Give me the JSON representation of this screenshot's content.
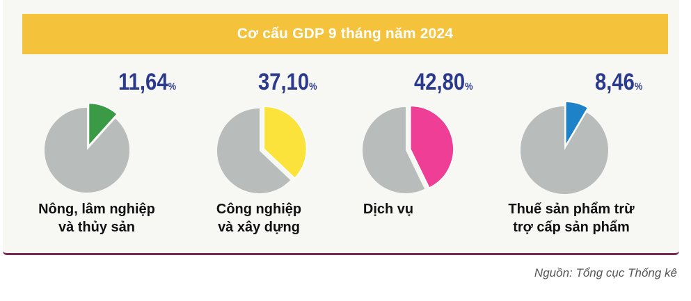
{
  "chart_data": {
    "type": "pie",
    "title": "Cơ cấu GDP 9 tháng năm 2024",
    "unit": "%",
    "categories": [
      {
        "label_line1": "Nông, lâm nghiệp",
        "label_line2": "và thủy sản",
        "value": 11.64,
        "value_text": "11,64",
        "color": "#3a9a45"
      },
      {
        "label_line1": "Công nghiệp",
        "label_line2": "và xây dựng",
        "value": 37.1,
        "value_text": "37,10",
        "color": "#fbe33c"
      },
      {
        "label_line1": "Dịch vụ",
        "label_line2": "",
        "value": 42.8,
        "value_text": "42,80",
        "color": "#ee3e95"
      },
      {
        "label_line1": "Thuế sản phẩm trừ",
        "label_line2": "trợ cấp sản phẩm",
        "value": 8.46,
        "value_text": "8,46",
        "color": "#1e82c8"
      }
    ],
    "remainder_color": "#b8bcbb",
    "banner_color": "#f5c33b",
    "value_color": "#2c3a8e"
  },
  "source": "Nguồn: Tổng cục Thống kê"
}
